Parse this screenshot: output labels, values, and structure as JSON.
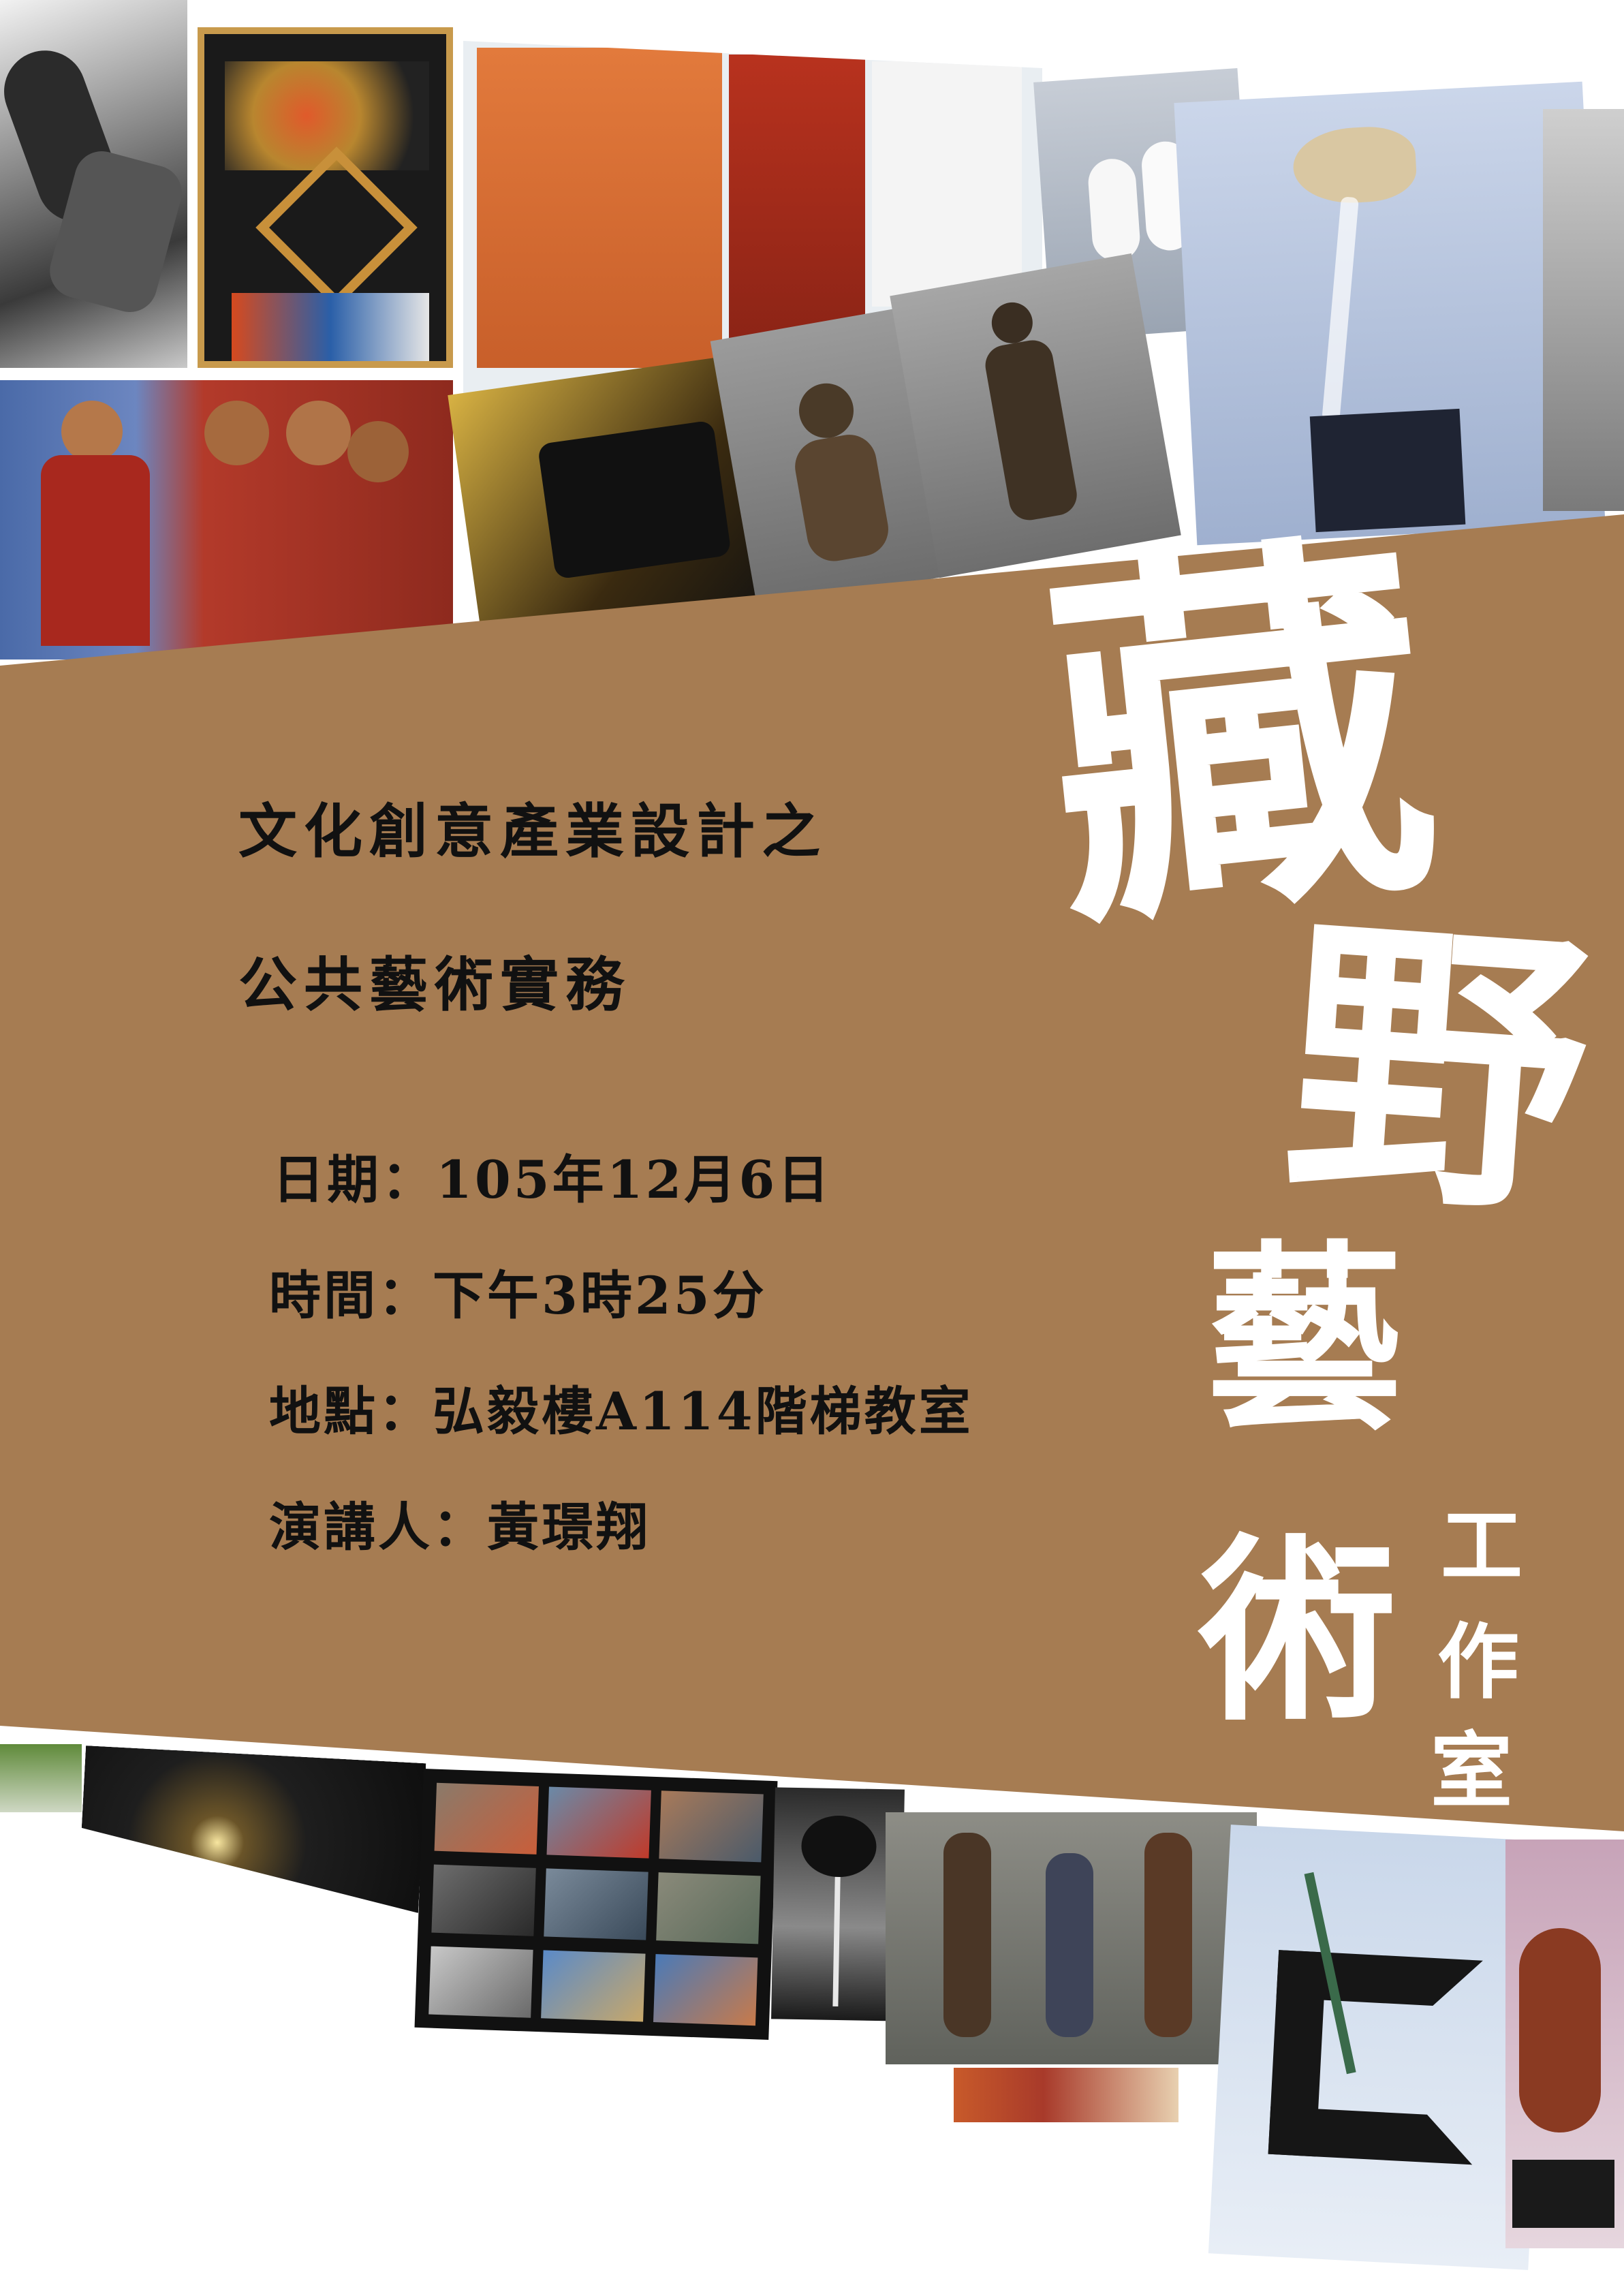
{
  "poster": {
    "title_line1": "文化創意產業設計之",
    "title_line2": "公共藝術實務",
    "date": "日期：105年12月6日",
    "time": "時間：下午3時25分",
    "location": "地點：弘毅樓A114階梯教室",
    "speaker": "演講人：黃璟翔"
  },
  "brand": {
    "char1": "藏",
    "char2": "野",
    "char3": "藝",
    "char4": "術",
    "small1": "工",
    "small2": "作",
    "small3": "室"
  },
  "colors": {
    "band": "#a67c52",
    "brush": "#ffffff",
    "text": "#111111"
  }
}
